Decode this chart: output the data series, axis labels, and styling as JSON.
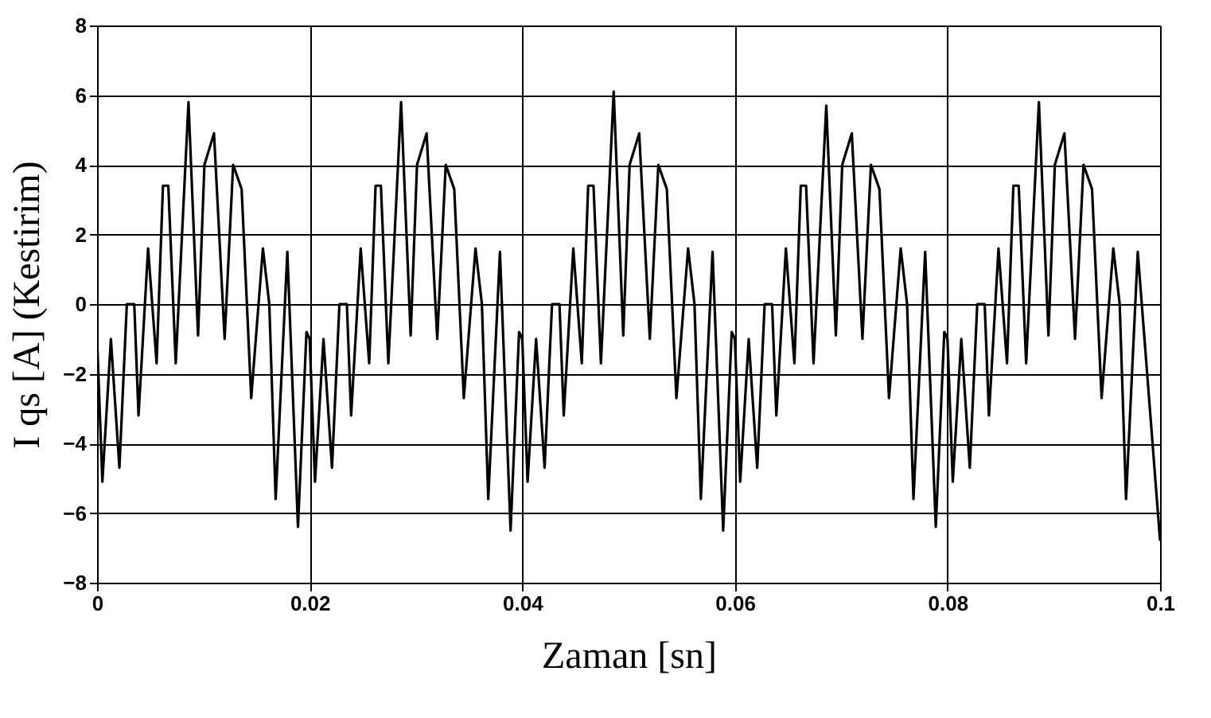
{
  "chart_data": {
    "type": "line",
    "xlabel": "Zaman [sn]",
    "ylabel": "I qs [A]   (Kestirim)",
    "xlim": [
      0,
      0.1
    ],
    "xticks": [
      0,
      0.02,
      0.04,
      0.06,
      0.08,
      0.1
    ],
    "ylim": [
      -8,
      8
    ],
    "yticks": [
      -8,
      -6,
      -4,
      -2,
      0,
      2,
      4,
      6,
      8
    ],
    "grid": true,
    "legend": false,
    "marker": "none",
    "line_style": "solid",
    "series": [
      {
        "color": "#000000",
        "x": [
          0,
          0.0005,
          0.0013,
          0.0021,
          0.0028,
          0.0035,
          0.0039,
          0.0048,
          0.0056,
          0.0062,
          0.0067,
          0.0074,
          0.0086,
          0.0095,
          0.0101,
          0.011,
          0.012,
          0.0128,
          0.0136,
          0.0145,
          0.0156,
          0.0162,
          0.0168,
          0.0179,
          0.0189,
          0.0197,
          0.02,
          0.0205,
          0.0213,
          0.0221,
          0.0228,
          0.0235,
          0.0239,
          0.0248,
          0.0256,
          0.0262,
          0.0267,
          0.0274,
          0.0286,
          0.0295,
          0.0301,
          0.031,
          0.032,
          0.0328,
          0.0336,
          0.0345,
          0.0356,
          0.0362,
          0.0368,
          0.0379,
          0.0389,
          0.0397,
          0.04,
          0.0405,
          0.0413,
          0.0421,
          0.0428,
          0.0435,
          0.0439,
          0.0448,
          0.0456,
          0.0462,
          0.0467,
          0.0474,
          0.0486,
          0.0495,
          0.0501,
          0.051,
          0.052,
          0.0528,
          0.0536,
          0.0545,
          0.0556,
          0.0562,
          0.0568,
          0.0579,
          0.0589,
          0.0597,
          0.06,
          0.0605,
          0.0613,
          0.0621,
          0.0628,
          0.0635,
          0.0639,
          0.0648,
          0.0656,
          0.0662,
          0.0667,
          0.0674,
          0.0686,
          0.0695,
          0.0701,
          0.071,
          0.072,
          0.0728,
          0.0736,
          0.0745,
          0.0756,
          0.0762,
          0.0768,
          0.0779,
          0.0789,
          0.0797,
          0.08,
          0.0805,
          0.0813,
          0.0821,
          0.0828,
          0.0835,
          0.0839,
          0.0848,
          0.0856,
          0.0862,
          0.0867,
          0.0874,
          0.0886,
          0.0895,
          0.0901,
          0.091,
          0.092,
          0.0928,
          0.0936,
          0.0945,
          0.0956,
          0.0962,
          0.0968,
          0.0979,
          0.1
        ],
        "values": [
          -1.0,
          -5.1,
          -1.0,
          -4.7,
          0.0,
          0.0,
          -3.2,
          1.6,
          -1.7,
          3.4,
          3.4,
          -1.7,
          5.8,
          -0.9,
          4.0,
          4.9,
          -1.0,
          4.0,
          3.3,
          -2.7,
          1.6,
          0.0,
          -5.6,
          1.5,
          -6.4,
          -0.8,
          -1.0,
          -5.1,
          -1.0,
          -4.7,
          0.0,
          0.0,
          -3.2,
          1.6,
          -1.7,
          3.4,
          3.4,
          -1.7,
          5.8,
          -0.9,
          4.0,
          4.9,
          -1.0,
          4.0,
          3.3,
          -2.7,
          1.6,
          0.0,
          -5.6,
          1.5,
          -6.5,
          -0.8,
          -1.0,
          -5.1,
          -1.0,
          -4.7,
          0.0,
          0.0,
          -3.2,
          1.6,
          -1.7,
          3.4,
          3.4,
          -1.7,
          6.1,
          -0.9,
          4.0,
          4.9,
          -1.0,
          4.0,
          3.3,
          -2.7,
          1.6,
          0.0,
          -5.6,
          1.5,
          -6.5,
          -0.8,
          -1.0,
          -5.1,
          -1.0,
          -4.7,
          0.0,
          0.0,
          -3.2,
          1.6,
          -1.7,
          3.4,
          3.4,
          -1.7,
          5.7,
          -0.9,
          4.0,
          4.9,
          -1.0,
          4.0,
          3.3,
          -2.7,
          1.6,
          0.0,
          -5.6,
          1.5,
          -6.4,
          -0.8,
          -1.0,
          -5.1,
          -1.0,
          -4.7,
          0.0,
          0.0,
          -3.2,
          1.6,
          -1.7,
          3.4,
          3.4,
          -1.7,
          5.8,
          -0.9,
          4.0,
          4.9,
          -1.0,
          4.0,
          3.3,
          -2.7,
          1.6,
          0.0,
          -5.6,
          1.5,
          -6.8
        ]
      }
    ]
  }
}
